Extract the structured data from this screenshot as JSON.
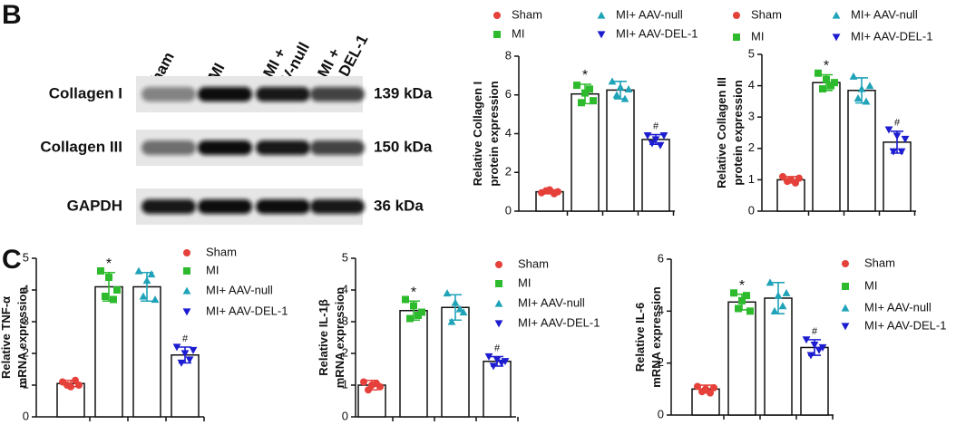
{
  "panels": [
    "B",
    "C"
  ],
  "blot": {
    "lanes": [
      [
        "Sham"
      ],
      [
        "MI"
      ],
      [
        "MI +",
        "AAV-null"
      ],
      [
        "MI +",
        "AAV-DEL-1"
      ]
    ],
    "rows": [
      {
        "label": "Collagen I",
        "size": "139 kDa"
      },
      {
        "label": "Collagen III",
        "size": "150 kDa"
      },
      {
        "label": "GAPDH",
        "size": "36 kDa"
      }
    ]
  },
  "chart_data": [
    {
      "type": "bar",
      "ylabel": [
        "Relative Collagen I",
        "protein expression"
      ],
      "ylim": [
        0,
        8
      ],
      "yticks": [
        0,
        2,
        4,
        6,
        8
      ],
      "legend": "top",
      "series": [
        {
          "name": "Sham",
          "color": "#e5403a",
          "marker": "circle",
          "value": 1.0,
          "error": 0.1,
          "points": [
            0.95,
            1.05,
            1.1,
            0.9,
            1.0
          ]
        },
        {
          "name": "MI",
          "color": "#2dbb2d",
          "marker": "square",
          "value": 6.05,
          "error": 0.5,
          "points": [
            6.5,
            5.6,
            6.1,
            6.3,
            5.7
          ],
          "annotation": "*"
        },
        {
          "name": "MI+ AAV-null",
          "color": "#1fa3b8",
          "marker": "triangle-up",
          "value": 6.25,
          "error": 0.45,
          "points": [
            6.7,
            6.0,
            6.4,
            5.8,
            6.3
          ]
        },
        {
          "name": "MI+ AAV-DEL-1",
          "color": "#1c1cd0",
          "marker": "triangle-down",
          "value": 3.7,
          "error": 0.25,
          "points": [
            3.9,
            3.5,
            3.7,
            3.4,
            3.9
          ],
          "annotation": "#"
        }
      ]
    },
    {
      "type": "bar",
      "ylabel": [
        "Relative Collagen III",
        "protein expression"
      ],
      "ylim": [
        0,
        5
      ],
      "yticks": [
        0,
        1,
        2,
        3,
        4,
        5
      ],
      "legend": "top",
      "series": [
        {
          "name": "Sham",
          "color": "#e5403a",
          "marker": "circle",
          "value": 1.0,
          "error": 0.1,
          "points": [
            1.1,
            0.95,
            1.0,
            0.9,
            1.05
          ]
        },
        {
          "name": "MI",
          "color": "#2dbb2d",
          "marker": "square",
          "value": 4.1,
          "error": 0.25,
          "points": [
            4.4,
            3.9,
            4.2,
            4.0,
            4.1
          ],
          "annotation": "*"
        },
        {
          "name": "MI+ AAV-null",
          "color": "#1fa3b8",
          "marker": "triangle-up",
          "value": 3.85,
          "error": 0.4,
          "points": [
            4.3,
            3.6,
            3.9,
            3.5,
            4.0
          ]
        },
        {
          "name": "MI+ AAV-DEL-1",
          "color": "#1c1cd0",
          "marker": "triangle-down",
          "value": 2.2,
          "error": 0.35,
          "points": [
            2.6,
            1.9,
            2.4,
            1.9,
            2.3
          ],
          "annotation": "#"
        }
      ]
    },
    {
      "type": "bar",
      "ylabel": [
        "Relative TNF-α",
        "mRNA expression"
      ],
      "ylim": [
        0,
        5
      ],
      "yticks": [
        0,
        1,
        2,
        3,
        4,
        5
      ],
      "legend": "right",
      "series": [
        {
          "name": "Sham",
          "color": "#e5403a",
          "marker": "circle",
          "value": 1.05,
          "error": 0.1,
          "points": [
            1.1,
            1.0,
            0.95,
            1.15,
            1.0
          ]
        },
        {
          "name": "MI",
          "color": "#2dbb2d",
          "marker": "square",
          "value": 4.1,
          "error": 0.45,
          "points": [
            4.6,
            3.8,
            4.4,
            3.7,
            4.0
          ],
          "annotation": "*"
        },
        {
          "name": "MI+ AAV-null",
          "color": "#1fa3b8",
          "marker": "triangle-up",
          "value": 4.1,
          "error": 0.45,
          "points": [
            4.6,
            3.8,
            4.3,
            4.5,
            3.7
          ]
        },
        {
          "name": "MI+ AAV-DEL-1",
          "color": "#1c1cd0",
          "marker": "triangle-down",
          "value": 1.95,
          "error": 0.25,
          "points": [
            2.2,
            1.7,
            2.0,
            1.8,
            2.1
          ],
          "annotation": "#"
        }
      ]
    },
    {
      "type": "bar",
      "ylabel": [
        "Relative IL-1β",
        "mRNA expression"
      ],
      "ylim": [
        0,
        5
      ],
      "yticks": [
        0,
        1,
        2,
        3,
        4,
        5
      ],
      "legend": "right",
      "series": [
        {
          "name": "Sham",
          "color": "#e5403a",
          "marker": "circle",
          "value": 1.0,
          "error": 0.15,
          "points": [
            1.1,
            0.85,
            1.0,
            1.05,
            0.95
          ]
        },
        {
          "name": "MI",
          "color": "#2dbb2d",
          "marker": "square",
          "value": 3.35,
          "error": 0.3,
          "points": [
            3.7,
            3.1,
            3.5,
            3.2,
            3.3
          ],
          "annotation": "*"
        },
        {
          "name": "MI+ AAV-null",
          "color": "#1fa3b8",
          "marker": "triangle-up",
          "value": 3.45,
          "error": 0.4,
          "points": [
            3.9,
            3.0,
            3.6,
            3.4,
            3.3
          ]
        },
        {
          "name": "MI+ AAV-DEL-1",
          "color": "#1c1cd0",
          "marker": "triangle-down",
          "value": 1.75,
          "error": 0.15,
          "points": [
            1.9,
            1.6,
            1.8,
            1.7,
            1.75
          ],
          "annotation": "#"
        }
      ]
    },
    {
      "type": "bar",
      "ylabel": [
        "Relative IL-6",
        "mRNA expression"
      ],
      "ylim": [
        0,
        6
      ],
      "yticks": [
        0,
        2,
        4,
        6
      ],
      "legend": "right",
      "series": [
        {
          "name": "Sham",
          "color": "#e5403a",
          "marker": "circle",
          "value": 1.0,
          "error": 0.15,
          "points": [
            1.1,
            0.9,
            1.0,
            0.85,
            1.05
          ]
        },
        {
          "name": "MI",
          "color": "#2dbb2d",
          "marker": "square",
          "value": 4.35,
          "error": 0.3,
          "points": [
            4.7,
            4.1,
            4.4,
            4.6,
            4.0
          ],
          "annotation": "*"
        },
        {
          "name": "MI+ AAV-null",
          "color": "#1fa3b8",
          "marker": "triangle-up",
          "value": 4.5,
          "error": 0.6,
          "points": [
            5.1,
            4.0,
            4.6,
            4.2,
            4.7
          ]
        },
        {
          "name": "MI+ AAV-DEL-1",
          "color": "#1c1cd0",
          "marker": "triangle-down",
          "value": 2.6,
          "error": 0.3,
          "points": [
            2.9,
            2.3,
            2.7,
            2.5,
            2.6
          ],
          "annotation": "#"
        }
      ]
    }
  ]
}
